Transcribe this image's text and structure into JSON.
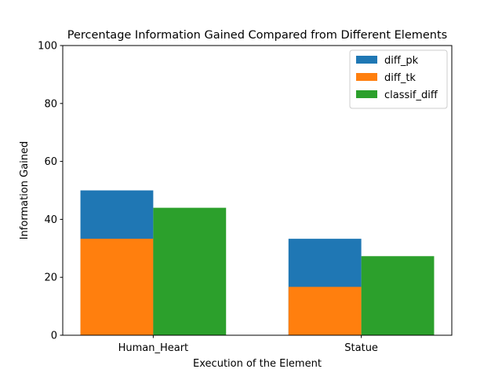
{
  "chart_data": {
    "type": "bar",
    "title": "Percentage Information Gained Compared from Different Elements",
    "xlabel": "Execution of the Element",
    "ylabel": "Information Gained",
    "categories": [
      "Human_Heart",
      "Statue"
    ],
    "ylim": [
      0,
      100
    ],
    "yticks": [
      "0",
      "20",
      "40",
      "60",
      "80",
      "100"
    ],
    "grid": false,
    "legend_position": "top-right",
    "series": [
      {
        "name": "diff_pk",
        "values": [
          50.0,
          33.3
        ],
        "color": "#1f77b4"
      },
      {
        "name": "diff_tk",
        "values": [
          33.3,
          16.7
        ],
        "color": "#ff7f0e"
      },
      {
        "name": "classif_diff",
        "values": [
          44.0,
          27.3
        ],
        "color": "#2ca02c"
      }
    ]
  }
}
